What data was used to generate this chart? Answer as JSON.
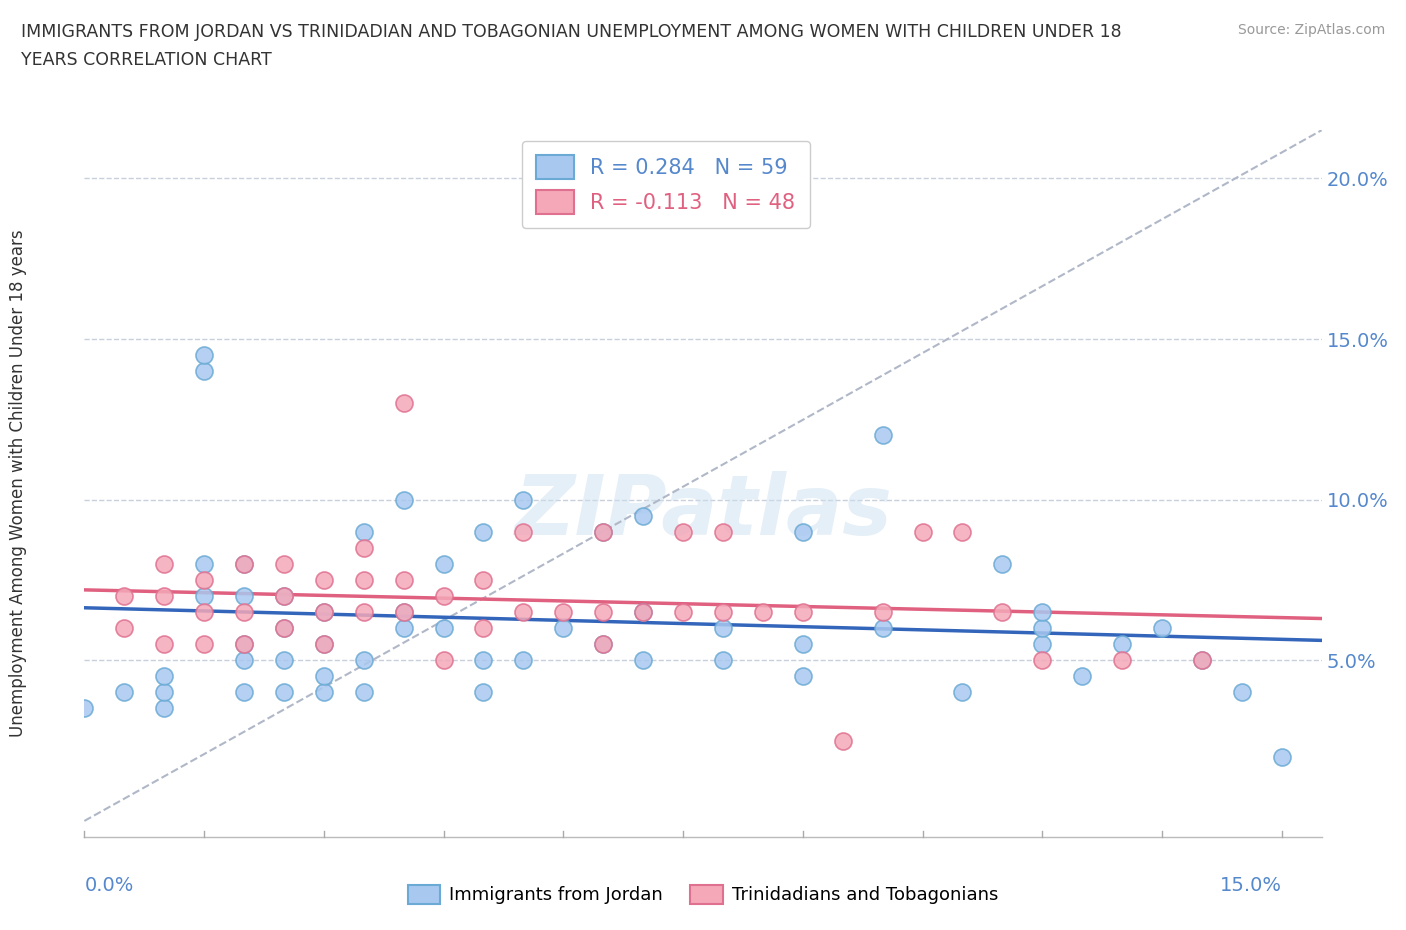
{
  "title_line1": "IMMIGRANTS FROM JORDAN VS TRINIDADIAN AND TOBAGONIAN UNEMPLOYMENT AMONG WOMEN WITH CHILDREN UNDER 18",
  "title_line2": "YEARS CORRELATION CHART",
  "source": "Source: ZipAtlas.com",
  "ylabel": "Unemployment Among Women with Children Under 18 years",
  "ytick_labels": [
    "5.0%",
    "10.0%",
    "15.0%",
    "20.0%"
  ],
  "ytick_values": [
    0.05,
    0.1,
    0.15,
    0.2
  ],
  "xlim": [
    0.0,
    0.155
  ],
  "ylim": [
    -0.005,
    0.215
  ],
  "jordan_color": "#a8c8f0",
  "jordan_edge": "#6aaad4",
  "tt_color": "#f4a8b8",
  "tt_edge": "#e07090",
  "jordan_line_color": "#3366bb",
  "tt_line_color": "#e06080",
  "ref_line_color": "#b0b8c8",
  "watermark": "ZIPatlas",
  "background": "#ffffff",
  "grid_color": "#c8d0dc",
  "axis_label_color": "#5588cc",
  "text_color": "#333333",
  "source_color": "#999999",
  "jordan_x": [
    0.005,
    0.01,
    0.01,
    0.01,
    0.015,
    0.015,
    0.015,
    0.015,
    0.02,
    0.02,
    0.02,
    0.02,
    0.02,
    0.025,
    0.025,
    0.025,
    0.025,
    0.03,
    0.03,
    0.03,
    0.03,
    0.035,
    0.035,
    0.035,
    0.04,
    0.04,
    0.04,
    0.045,
    0.045,
    0.05,
    0.05,
    0.05,
    0.055,
    0.055,
    0.06,
    0.065,
    0.065,
    0.07,
    0.07,
    0.07,
    0.08,
    0.08,
    0.09,
    0.09,
    0.09,
    0.1,
    0.1,
    0.11,
    0.115,
    0.12,
    0.12,
    0.12,
    0.125,
    0.13,
    0.135,
    0.14,
    0.145,
    0.15,
    0.0
  ],
  "jordan_y": [
    0.04,
    0.035,
    0.04,
    0.045,
    0.07,
    0.08,
    0.14,
    0.145,
    0.04,
    0.05,
    0.055,
    0.07,
    0.08,
    0.04,
    0.05,
    0.06,
    0.07,
    0.04,
    0.045,
    0.055,
    0.065,
    0.04,
    0.05,
    0.09,
    0.06,
    0.065,
    0.1,
    0.06,
    0.08,
    0.04,
    0.05,
    0.09,
    0.05,
    0.1,
    0.06,
    0.055,
    0.09,
    0.05,
    0.065,
    0.095,
    0.05,
    0.06,
    0.045,
    0.055,
    0.09,
    0.06,
    0.12,
    0.04,
    0.08,
    0.055,
    0.06,
    0.065,
    0.045,
    0.055,
    0.06,
    0.05,
    0.04,
    0.02,
    0.035
  ],
  "tt_x": [
    0.005,
    0.005,
    0.01,
    0.01,
    0.01,
    0.015,
    0.015,
    0.015,
    0.02,
    0.02,
    0.02,
    0.025,
    0.025,
    0.025,
    0.03,
    0.03,
    0.03,
    0.035,
    0.035,
    0.035,
    0.04,
    0.04,
    0.04,
    0.045,
    0.045,
    0.05,
    0.05,
    0.055,
    0.055,
    0.06,
    0.065,
    0.065,
    0.065,
    0.07,
    0.075,
    0.075,
    0.08,
    0.08,
    0.085,
    0.09,
    0.095,
    0.1,
    0.105,
    0.11,
    0.115,
    0.12,
    0.13,
    0.14
  ],
  "tt_y": [
    0.06,
    0.07,
    0.055,
    0.07,
    0.08,
    0.055,
    0.065,
    0.075,
    0.055,
    0.065,
    0.08,
    0.06,
    0.07,
    0.08,
    0.055,
    0.065,
    0.075,
    0.065,
    0.075,
    0.085,
    0.065,
    0.075,
    0.13,
    0.05,
    0.07,
    0.06,
    0.075,
    0.065,
    0.09,
    0.065,
    0.055,
    0.065,
    0.09,
    0.065,
    0.065,
    0.09,
    0.065,
    0.09,
    0.065,
    0.065,
    0.025,
    0.065,
    0.09,
    0.09,
    0.065,
    0.05,
    0.05,
    0.05
  ],
  "legend_jordan_label": "R = 0.284   N = 59",
  "legend_tt_label": "R = -0.113   N = 48",
  "bottom_legend_jordan": "Immigrants from Jordan",
  "bottom_legend_tt": "Trinidadians and Tobagonians"
}
